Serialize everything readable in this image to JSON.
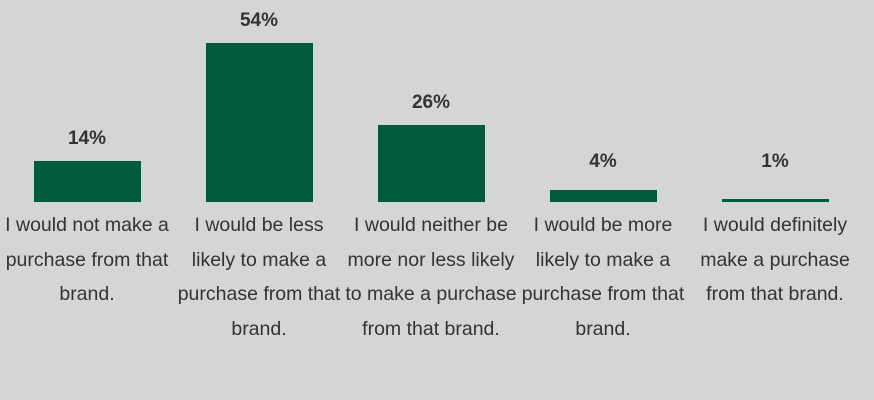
{
  "chart_data": {
    "type": "bar",
    "categories": [
      "I would not make a purchase from that brand.",
      "I would be less likely to make a purchase from that brand.",
      "I would neither be more nor less likely to make a purchase from that brand.",
      "I would be more likely to make a purchase from that brand.",
      "I would definitely make a purchase from that brand."
    ],
    "values": [
      14,
      54,
      26,
      4,
      1
    ],
    "value_labels": [
      "14%",
      "54%",
      "26%",
      "4%",
      "1%"
    ],
    "ylim": [
      0,
      54
    ],
    "grid": false,
    "bar_color": "#005a3c"
  }
}
